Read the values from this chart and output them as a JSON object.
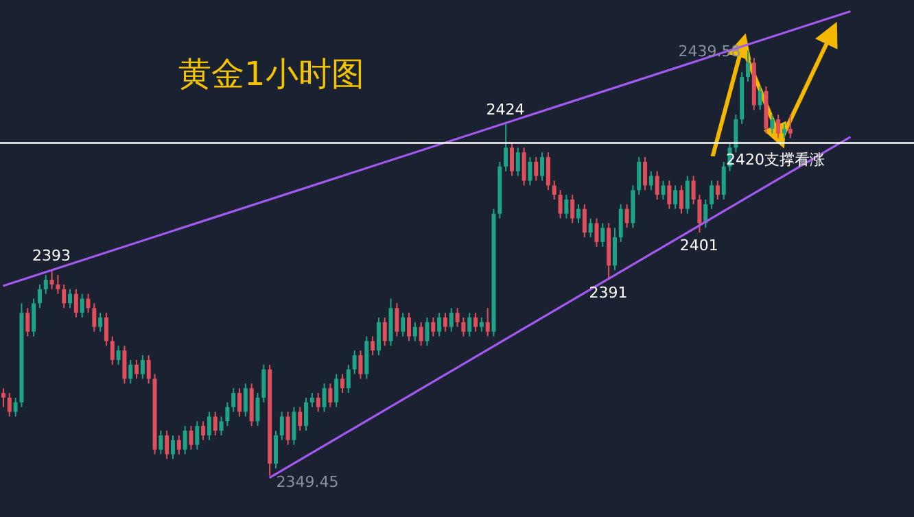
{
  "chart_data": {
    "type": "candlestick",
    "title": "黄金1小时图",
    "categories": [
      null,
      null,
      null,
      null,
      null,
      null,
      null,
      null,
      null,
      null,
      null,
      null,
      null,
      null,
      null,
      null,
      null,
      null,
      null,
      null,
      null,
      null,
      null,
      null,
      null,
      null,
      null,
      null,
      null,
      null,
      null,
      null,
      null,
      null,
      null,
      null,
      null,
      null,
      null,
      null,
      null,
      null,
      null,
      null,
      null,
      null,
      null,
      null,
      null,
      null,
      null,
      null,
      null,
      null,
      null,
      null,
      null,
      null,
      null,
      null,
      null,
      null,
      null,
      null,
      null,
      null,
      null,
      null,
      null,
      null,
      null,
      null,
      null,
      null,
      null,
      null,
      null,
      null,
      null,
      null,
      null,
      null,
      null,
      null,
      null,
      null,
      null,
      null,
      null,
      null,
      null,
      null,
      null,
      null,
      null,
      null,
      null,
      null,
      null,
      null,
      null,
      null,
      null,
      null,
      null,
      null,
      null,
      null,
      null,
      null,
      null,
      null,
      null,
      null,
      null,
      null,
      null,
      null,
      null,
      null,
      null,
      null,
      null,
      null,
      null,
      null,
      null,
      null,
      null,
      null,
      null,
      null,
      null,
      null,
      null,
      null,
      null,
      null,
      null,
      null,
      null,
      null,
      null,
      null,
      null,
      null,
      null,
      null,
      null,
      null,
      null
    ],
    "ohlc": [
      [
        2367,
        2368,
        2364,
        2366
      ],
      [
        2366,
        2367,
        2362,
        2363
      ],
      [
        2363,
        2366,
        2362,
        2365
      ],
      [
        2365,
        2386,
        2364,
        2384
      ],
      [
        2384,
        2385,
        2379,
        2380
      ],
      [
        2380,
        2387,
        2379,
        2386
      ],
      [
        2386,
        2390,
        2385,
        2389
      ],
      [
        2389,
        2392,
        2388,
        2391
      ],
      [
        2391,
        2393,
        2389,
        2390
      ],
      [
        2390,
        2392,
        2388,
        2389
      ],
      [
        2389,
        2390,
        2385,
        2386
      ],
      [
        2386,
        2389,
        2385,
        2388
      ],
      [
        2388,
        2389,
        2383,
        2384
      ],
      [
        2384,
        2388,
        2383,
        2387
      ],
      [
        2387,
        2388,
        2384,
        2385
      ],
      [
        2385,
        2386,
        2380,
        2381
      ],
      [
        2381,
        2384,
        2380,
        2383
      ],
      [
        2383,
        2384,
        2377,
        2378
      ],
      [
        2378,
        2379,
        2373,
        2374
      ],
      [
        2374,
        2377,
        2373,
        2376
      ],
      [
        2376,
        2377,
        2369,
        2370
      ],
      [
        2370,
        2374,
        2369,
        2373
      ],
      [
        2373,
        2374,
        2370,
        2371
      ],
      [
        2371,
        2375,
        2370,
        2374
      ],
      [
        2374,
        2375,
        2369,
        2370
      ],
      [
        2370,
        2371,
        2354,
        2355
      ],
      [
        2355,
        2359,
        2354,
        2358
      ],
      [
        2358,
        2359,
        2353,
        2354
      ],
      [
        2354,
        2358,
        2353,
        2357
      ],
      [
        2357,
        2358,
        2354,
        2355
      ],
      [
        2355,
        2360,
        2354,
        2359
      ],
      [
        2359,
        2360,
        2355,
        2356
      ],
      [
        2356,
        2361,
        2355,
        2360
      ],
      [
        2360,
        2361,
        2357,
        2358
      ],
      [
        2358,
        2363,
        2357,
        2362
      ],
      [
        2362,
        2363,
        2358,
        2359
      ],
      [
        2359,
        2362,
        2358,
        2361
      ],
      [
        2361,
        2365,
        2360,
        2364
      ],
      [
        2364,
        2368,
        2363,
        2367
      ],
      [
        2367,
        2368,
        2362,
        2363
      ],
      [
        2363,
        2369,
        2362,
        2368
      ],
      [
        2368,
        2369,
        2360,
        2361
      ],
      [
        2361,
        2367,
        2360,
        2366
      ],
      [
        2366,
        2373,
        2365,
        2372
      ],
      [
        2372,
        2373,
        2349.45,
        2352
      ],
      [
        2352,
        2359,
        2351,
        2358
      ],
      [
        2358,
        2363,
        2357,
        2362
      ],
      [
        2362,
        2363,
        2356,
        2357
      ],
      [
        2357,
        2364,
        2356,
        2363
      ],
      [
        2363,
        2364,
        2359,
        2360
      ],
      [
        2360,
        2366,
        2359,
        2365
      ],
      [
        2365,
        2367,
        2364,
        2366
      ],
      [
        2366,
        2367,
        2363,
        2364
      ],
      [
        2364,
        2369,
        2363,
        2368
      ],
      [
        2368,
        2369,
        2364,
        2365
      ],
      [
        2365,
        2371,
        2364,
        2370
      ],
      [
        2370,
        2371,
        2367,
        2368
      ],
      [
        2368,
        2373,
        2367,
        2372
      ],
      [
        2372,
        2376,
        2371,
        2375
      ],
      [
        2375,
        2376,
        2370,
        2371
      ],
      [
        2371,
        2379,
        2370,
        2378
      ],
      [
        2378,
        2379,
        2375,
        2376
      ],
      [
        2376,
        2383,
        2375,
        2382
      ],
      [
        2382,
        2383,
        2377,
        2378
      ],
      [
        2378,
        2387,
        2377,
        2385
      ],
      [
        2385,
        2386,
        2379,
        2380
      ],
      [
        2380,
        2384,
        2379,
        2383
      ],
      [
        2383,
        2384,
        2378,
        2379
      ],
      [
        2379,
        2382,
        2378,
        2381
      ],
      [
        2381,
        2382,
        2377,
        2378
      ],
      [
        2378,
        2383,
        2377,
        2382
      ],
      [
        2382,
        2383,
        2379,
        2380
      ],
      [
        2380,
        2384,
        2379,
        2383
      ],
      [
        2383,
        2384,
        2380,
        2381
      ],
      [
        2381,
        2385,
        2380,
        2384
      ],
      [
        2384,
        2385,
        2381,
        2382
      ],
      [
        2382,
        2383,
        2379,
        2380
      ],
      [
        2380,
        2384,
        2379,
        2383
      ],
      [
        2383,
        2384,
        2380,
        2381
      ],
      [
        2381,
        2383,
        2380,
        2382
      ],
      [
        2382,
        2385,
        2379,
        2380
      ],
      [
        2380,
        2406,
        2379,
        2405
      ],
      [
        2405,
        2416,
        2404,
        2415
      ],
      [
        2415,
        2424,
        2414,
        2419
      ],
      [
        2419,
        2420,
        2413,
        2414
      ],
      [
        2414,
        2419,
        2413,
        2418
      ],
      [
        2418,
        2419,
        2411,
        2412
      ],
      [
        2412,
        2417,
        2411,
        2416
      ],
      [
        2416,
        2417,
        2412,
        2413
      ],
      [
        2413,
        2418,
        2412,
        2417
      ],
      [
        2417,
        2418,
        2410,
        2411
      ],
      [
        2411,
        2412,
        2408,
        2409
      ],
      [
        2409,
        2410,
        2404,
        2405
      ],
      [
        2405,
        2409,
        2404,
        2408
      ],
      [
        2408,
        2409,
        2403,
        2404
      ],
      [
        2404,
        2407,
        2403,
        2406
      ],
      [
        2406,
        2407,
        2400,
        2401
      ],
      [
        2401,
        2404,
        2400,
        2403
      ],
      [
        2403,
        2404,
        2398,
        2399
      ],
      [
        2399,
        2403,
        2398,
        2402
      ],
      [
        2402,
        2403,
        2391,
        2394
      ],
      [
        2394,
        2402,
        2393,
        2400
      ],
      [
        2400,
        2407,
        2399,
        2406
      ],
      [
        2406,
        2407,
        2402,
        2403
      ],
      [
        2403,
        2411,
        2402,
        2410
      ],
      [
        2410,
        2417,
        2409,
        2416
      ],
      [
        2416,
        2417,
        2410,
        2411
      ],
      [
        2411,
        2414,
        2410,
        2413
      ],
      [
        2413,
        2414,
        2408,
        2409
      ],
      [
        2409,
        2412,
        2408,
        2411
      ],
      [
        2411,
        2412,
        2406,
        2407
      ],
      [
        2407,
        2411,
        2406,
        2410
      ],
      [
        2410,
        2411,
        2405,
        2406
      ],
      [
        2406,
        2413,
        2405,
        2412
      ],
      [
        2412,
        2413,
        2407,
        2408
      ],
      [
        2408,
        2409,
        2401,
        2403
      ],
      [
        2403,
        2408,
        2402,
        2407
      ],
      [
        2407,
        2412,
        2406,
        2411
      ],
      [
        2411,
        2412,
        2408,
        2409
      ],
      [
        2409,
        2416,
        2408,
        2415
      ],
      [
        2415,
        2420,
        2414,
        2419
      ],
      [
        2419,
        2426,
        2418,
        2425
      ],
      [
        2425,
        2435,
        2424,
        2434
      ],
      [
        2434,
        2439.58,
        2433,
        2437
      ],
      [
        2437,
        2438,
        2427,
        2428
      ],
      [
        2428,
        2432,
        2427,
        2431
      ],
      [
        2431,
        2432,
        2422,
        2423
      ],
      [
        2423,
        2426,
        2422,
        2425
      ],
      [
        2425,
        2426,
        2421,
        2422
      ],
      [
        2422,
        2424,
        2421,
        2423
      ],
      [
        2423,
        2426,
        2421,
        2422
      ],
      null,
      null,
      null,
      null,
      null,
      null,
      null,
      null,
      null,
      null,
      null,
      null,
      null,
      null,
      null,
      null,
      null,
      null,
      null,
      null
    ],
    "ylim": [
      2340.7,
      2450.3
    ],
    "series": [
      {
        "type": "line",
        "color": "#a259f0",
        "values": [
          2389.7,
          null,
          null,
          null,
          null,
          null,
          null,
          null,
          null,
          null,
          null,
          null,
          null,
          null,
          null,
          null,
          null,
          null,
          null,
          null,
          null,
          null,
          null,
          null,
          null,
          null,
          null,
          null,
          null,
          null,
          null,
          null,
          null,
          null,
          null,
          null,
          null,
          null,
          null,
          null,
          null,
          null,
          null,
          null,
          null,
          null,
          null,
          null,
          null,
          null,
          null,
          null,
          null,
          null,
          null,
          null,
          null,
          null,
          null,
          null,
          null,
          null,
          null,
          null,
          null,
          null,
          null,
          null,
          null,
          null,
          null,
          null,
          null,
          null,
          null,
          null,
          null,
          null,
          null,
          null,
          null,
          null,
          null,
          null,
          null,
          null,
          null,
          null,
          null,
          null,
          null,
          null,
          null,
          null,
          null,
          null,
          null,
          null,
          null,
          null,
          null,
          null,
          null,
          null,
          null,
          null,
          null,
          null,
          null,
          null,
          null,
          null,
          null,
          null,
          null,
          null,
          null,
          null,
          null,
          null,
          null,
          null,
          null,
          null,
          null,
          null,
          null,
          null,
          null,
          null,
          null,
          null,
          null,
          null,
          null,
          null,
          null,
          null,
          null,
          null,
          2447.9,
          null,
          null,
          null,
          null,
          null,
          null,
          null,
          null,
          null,
          null
        ]
      },
      {
        "type": "line",
        "color": "#a259f0",
        "values": [
          null,
          null,
          null,
          null,
          null,
          null,
          null,
          null,
          null,
          null,
          null,
          null,
          null,
          null,
          null,
          null,
          null,
          null,
          null,
          null,
          null,
          null,
          null,
          null,
          null,
          null,
          null,
          null,
          null,
          null,
          null,
          null,
          null,
          null,
          null,
          null,
          null,
          null,
          null,
          null,
          null,
          null,
          null,
          null,
          2349,
          null,
          null,
          null,
          null,
          null,
          null,
          null,
          null,
          null,
          null,
          null,
          null,
          null,
          null,
          null,
          null,
          null,
          null,
          null,
          null,
          null,
          null,
          null,
          null,
          null,
          null,
          null,
          null,
          null,
          null,
          null,
          null,
          null,
          null,
          null,
          null,
          null,
          null,
          null,
          null,
          null,
          null,
          null,
          null,
          null,
          null,
          null,
          null,
          null,
          null,
          null,
          null,
          null,
          null,
          null,
          null,
          null,
          null,
          null,
          null,
          null,
          null,
          null,
          null,
          null,
          null,
          null,
          null,
          null,
          null,
          null,
          null,
          null,
          null,
          null,
          null,
          null,
          null,
          null,
          null,
          null,
          null,
          null,
          null,
          null,
          null,
          null,
          null,
          null,
          null,
          null,
          null,
          null,
          null,
          null,
          2421.3,
          null,
          null,
          null,
          null,
          null,
          null,
          null,
          null,
          null,
          null
        ]
      }
    ],
    "ref_lines": [
      {
        "axis": "y",
        "value": 2420,
        "label": "2420支撑看涨",
        "color": "#ffffff"
      }
    ],
    "annotations": [
      {
        "text": "2393",
        "y": 2393
      },
      {
        "text": "2424",
        "y": 2424
      },
      {
        "text": "2439.58",
        "y": 2439.58
      },
      {
        "text": "2391",
        "y": 2391
      },
      {
        "text": "2401",
        "y": 2401
      },
      "2349.45"
    ]
  }
}
